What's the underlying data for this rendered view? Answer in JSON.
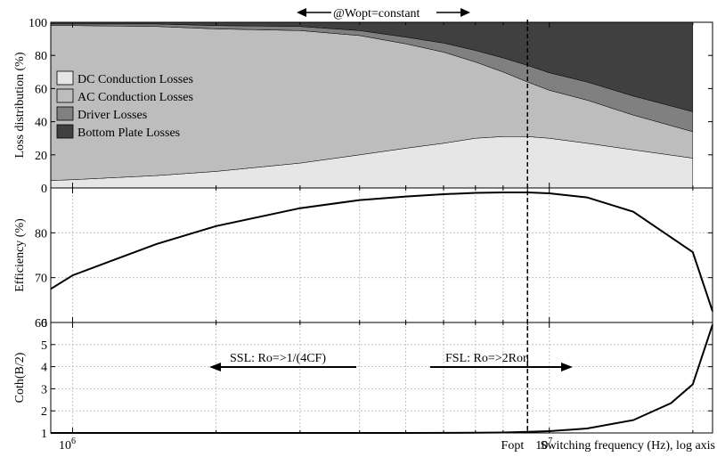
{
  "colors": {
    "dc_conduction": "#e6e6e6",
    "ac_conduction": "#bdbdbd",
    "driver": "#808080",
    "bottom_plate": "#404040",
    "line": "#000000"
  },
  "annotations": {
    "top": "@Wopt=constant",
    "fopt": "Fopt",
    "ssl": "SSL: Ro=>1/(4CF)",
    "fsl": "FSL: Ro=>2Ron",
    "fopt_value": 9000000
  },
  "chart_data": [
    {
      "type": "area",
      "stacked": true,
      "title": "",
      "xlabel": "",
      "ylabel": "Loss distribution (%)",
      "x_scale": "log",
      "xlim": [
        900000,
        22000000
      ],
      "ylim": [
        0,
        100
      ],
      "yticks": [
        0,
        20,
        40,
        60,
        80,
        100
      ],
      "legend_position": "middle-left",
      "x": [
        900000,
        1000000,
        1500000,
        2000000,
        3000000,
        4000000,
        5000000,
        6000000,
        7000000,
        8000000,
        9000000,
        10000000,
        12000000,
        15000000,
        20000000
      ],
      "series": [
        {
          "name": "DC Conduction Losses",
          "values": [
            4.5,
            5,
            7.5,
            10,
            15,
            20,
            24,
            27,
            30,
            31,
            31,
            30,
            27,
            23,
            18
          ]
        },
        {
          "name": "AC Conduction Losses",
          "values": [
            93.5,
            93,
            90,
            86,
            80,
            72,
            63,
            55,
            46,
            39,
            33,
            29,
            26,
            21,
            16
          ]
        },
        {
          "name": "Driver Losses",
          "values": [
            1,
            1,
            1.5,
            2,
            2.5,
            3,
            4,
            5.5,
            7,
            8.5,
            10,
            10.5,
            11,
            11.5,
            12
          ]
        },
        {
          "name": "Bottom Plate Losses",
          "values": [
            1,
            1,
            1,
            2,
            2.5,
            5,
            9,
            12.5,
            17,
            21.5,
            26,
            30.5,
            36,
            44.5,
            54
          ]
        }
      ]
    },
    {
      "type": "line",
      "title": "",
      "xlabel": "",
      "ylabel": "Efficiency (%)",
      "x_scale": "log",
      "xlim": [
        900000,
        22000000
      ],
      "ylim": [
        60,
        90
      ],
      "yticks": [
        60,
        70,
        80
      ],
      "grid": true,
      "x": [
        900000,
        1000000,
        1500000,
        2000000,
        3000000,
        4000000,
        5000000,
        6000000,
        7000000,
        8000000,
        9000000,
        10000000,
        12000000,
        15000000,
        20000000,
        22000000
      ],
      "values": [
        67.5,
        70.5,
        77.5,
        81.5,
        85.5,
        87.3,
        88.1,
        88.6,
        88.9,
        89.0,
        89.0,
        88.8,
        87.9,
        84.7,
        75.7,
        62.5
      ]
    },
    {
      "type": "line",
      "title": "",
      "xlabel": "Switching frequency (Hz), log axis",
      "ylabel": "Coth(B/2)",
      "x_scale": "log",
      "xlim": [
        900000,
        22000000
      ],
      "ylim": [
        1,
        6
      ],
      "yticks": [
        1,
        2,
        3,
        4,
        5,
        6
      ],
      "xtick_labels": [
        "10^6",
        "10^7"
      ],
      "grid": true,
      "x": [
        900000,
        1000000,
        2000000,
        3000000,
        5000000,
        7000000,
        8000000,
        9000000,
        10000000,
        12000000,
        15000000,
        18000000,
        20000000,
        22000000
      ],
      "values": [
        1.0,
        1.0,
        1.0,
        1.0,
        1.002,
        1.01,
        1.02,
        1.05,
        1.08,
        1.2,
        1.58,
        2.35,
        3.2,
        5.9
      ]
    }
  ]
}
